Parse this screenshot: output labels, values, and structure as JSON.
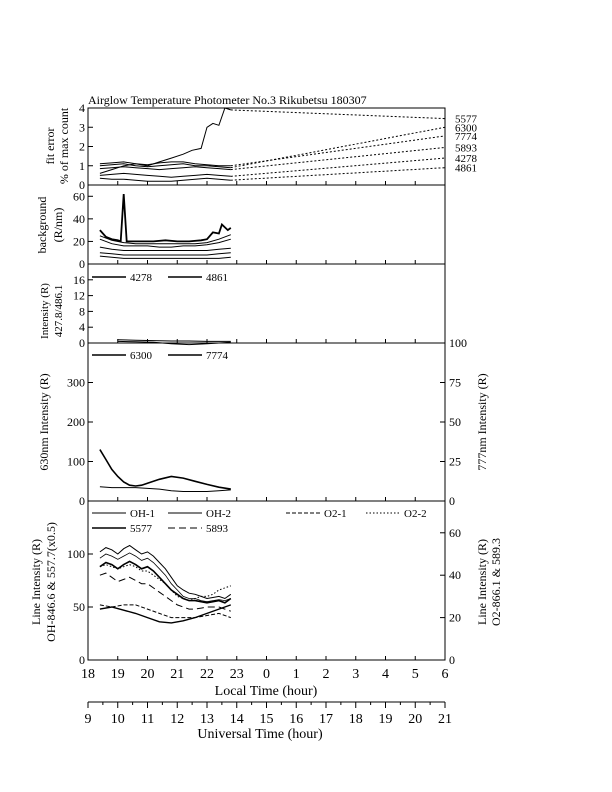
{
  "title": "Airglow Temperature Photometer No.3  Rikubetsu    180307",
  "x_axis": {
    "local_label": "Local Time (hour)",
    "local_ticks": [
      "18",
      "19",
      "20",
      "21",
      "22",
      "23",
      "0",
      "1",
      "2",
      "3",
      "4",
      "5",
      "6"
    ],
    "ut_label": "Universal Time (hour)",
    "ut_ticks": [
      "9",
      "10",
      "11",
      "12",
      "13",
      "14",
      "15",
      "16",
      "17",
      "18",
      "19",
      "20",
      "21"
    ],
    "range_local": [
      18,
      30
    ]
  },
  "chart_data": [
    {
      "type": "line",
      "panel": "fit-error",
      "ylabel_line1": "fit error",
      "ylabel_line2": "% of max count",
      "ylim": [
        0,
        4
      ],
      "yticks": [
        "0",
        "1",
        "2",
        "3",
        "4"
      ],
      "labels_right": [
        "5577",
        "6300",
        "7774",
        "5893",
        "4278",
        "4861"
      ],
      "label_targets_y": [
        3.45,
        3.0,
        2.55,
        1.95,
        1.4,
        0.9
      ],
      "series": [
        {
          "name": "5577",
          "x": [
            18.4,
            18.8,
            19.2,
            19.6,
            20.0,
            20.4,
            20.8,
            21.2,
            21.5,
            21.8,
            22.0,
            22.2,
            22.4,
            22.6,
            22.8
          ],
          "y": [
            0.6,
            0.8,
            1.0,
            1.1,
            1.0,
            1.2,
            1.4,
            1.6,
            1.8,
            1.9,
            3.0,
            3.2,
            3.1,
            4.0,
            3.9
          ]
        },
        {
          "name": "6300",
          "x": [
            18.4,
            18.8,
            19.2,
            19.6,
            20.0,
            20.4,
            20.8,
            21.2,
            21.6,
            22.0,
            22.4,
            22.8
          ],
          "y": [
            1.0,
            1.05,
            1.1,
            1.0,
            0.95,
            1.0,
            1.05,
            1.1,
            1.0,
            1.0,
            0.95,
            0.9
          ]
        },
        {
          "name": "7774",
          "x": [
            18.4,
            18.8,
            19.2,
            19.6,
            20.0,
            20.4,
            20.8,
            21.2,
            21.6,
            22.0,
            22.4,
            22.8
          ],
          "y": [
            1.1,
            1.15,
            1.2,
            1.1,
            1.05,
            1.15,
            1.2,
            1.2,
            1.1,
            1.05,
            1.0,
            1.0
          ]
        },
        {
          "name": "5893",
          "x": [
            18.4,
            18.8,
            19.2,
            19.6,
            20.0,
            20.4,
            20.8,
            21.2,
            21.6,
            22.0,
            22.4,
            22.8
          ],
          "y": [
            0.85,
            0.9,
            0.95,
            0.9,
            0.85,
            0.8,
            0.85,
            0.9,
            0.95,
            0.9,
            0.85,
            0.8
          ]
        },
        {
          "name": "4278",
          "x": [
            18.4,
            18.8,
            19.2,
            19.6,
            20.0,
            20.4,
            20.8,
            21.2,
            21.6,
            22.0,
            22.4,
            22.8
          ],
          "y": [
            0.5,
            0.55,
            0.6,
            0.55,
            0.5,
            0.45,
            0.4,
            0.45,
            0.5,
            0.55,
            0.5,
            0.45
          ]
        },
        {
          "name": "4861",
          "x": [
            18.4,
            18.8,
            19.2,
            19.6,
            20.0,
            20.4,
            20.8,
            21.2,
            21.6,
            22.0,
            22.4,
            22.8
          ],
          "y": [
            0.35,
            0.3,
            0.3,
            0.25,
            0.2,
            0.2,
            0.2,
            0.25,
            0.3,
            0.35,
            0.3,
            0.25
          ]
        }
      ]
    },
    {
      "type": "line",
      "panel": "background",
      "ylabel_line1": "background",
      "ylabel_line2": "(R/nm)",
      "ylim": [
        0,
        70
      ],
      "yticks": [
        "0",
        "20",
        "40",
        "60"
      ],
      "series": [
        {
          "name": "",
          "x": [
            18.4,
            18.6,
            18.8,
            19.0,
            19.1,
            19.2,
            19.3,
            19.4,
            19.8,
            20.2,
            20.6,
            21.0,
            21.4,
            21.8,
            22.0,
            22.2,
            22.4,
            22.5,
            22.7,
            22.8
          ],
          "y": [
            30,
            24,
            22,
            21,
            20,
            62,
            20,
            20,
            20,
            20,
            21,
            20,
            20,
            21,
            22,
            28,
            27,
            35,
            30,
            32
          ]
        },
        {
          "name": "",
          "x": [
            18.4,
            18.8,
            19.2,
            19.6,
            20.0,
            20.4,
            20.8,
            21.2,
            21.6,
            22.0,
            22.4,
            22.8
          ],
          "y": [
            25,
            21,
            19,
            18,
            18,
            18,
            18,
            18,
            18,
            19,
            22,
            26
          ]
        },
        {
          "name": "",
          "x": [
            18.4,
            18.8,
            19.2,
            19.6,
            20.0,
            20.4,
            20.8,
            21.2,
            21.6,
            22.0,
            22.4,
            22.8
          ],
          "y": [
            22,
            18,
            16,
            16,
            16,
            15,
            15,
            16,
            16,
            17,
            19,
            22
          ]
        },
        {
          "name": "",
          "x": [
            18.4,
            18.8,
            19.2,
            19.6,
            20.0,
            20.4,
            20.8,
            21.2,
            21.6,
            22.0,
            22.4,
            22.8
          ],
          "y": [
            15,
            13,
            12,
            12,
            12,
            12,
            12,
            12,
            12,
            12,
            13,
            14
          ]
        },
        {
          "name": "",
          "x": [
            18.4,
            18.8,
            19.2,
            19.6,
            20.0,
            20.4,
            20.8,
            21.2,
            21.6,
            22.0,
            22.4,
            22.8
          ],
          "y": [
            10,
            9,
            8,
            8,
            8,
            8,
            8,
            8,
            8,
            8,
            9,
            10
          ]
        },
        {
          "name": "",
          "x": [
            18.4,
            18.8,
            19.2,
            19.6,
            20.0,
            20.4,
            20.8,
            21.2,
            21.6,
            22.0,
            22.4,
            22.8
          ],
          "y": [
            7,
            6,
            5,
            5,
            5,
            5,
            5,
            5,
            5,
            5,
            5,
            6
          ]
        }
      ]
    },
    {
      "type": "line",
      "panel": "intensity-427-486",
      "ylabel_line1": "Intensity (R)",
      "ylabel_line2": "427.8/486.1",
      "ylim": [
        0,
        20
      ],
      "yticks": [
        "0",
        "4",
        "8",
        "12",
        "16"
      ],
      "legend": [
        "4278",
        "4861"
      ],
      "series": [
        {
          "name": "4278",
          "x": [
            19.0,
            19.6,
            20.2,
            20.8,
            21.4,
            22.0,
            22.6,
            22.8
          ],
          "y": [
            0.8,
            0.7,
            0.6,
            0.5,
            0.5,
            0.4,
            0.4,
            0.4
          ]
        },
        {
          "name": "4861",
          "x": [
            19.0,
            19.6,
            20.2,
            20.8,
            21.4,
            22.0,
            22.6,
            22.8
          ],
          "y": [
            0.4,
            0.3,
            0.2,
            -0.2,
            -0.4,
            -0.2,
            0.1,
            0.2
          ]
        }
      ]
    },
    {
      "type": "line",
      "panel": "intensity-630-777",
      "ylabel_left": "630nm Intensity (R)",
      "ylabel_right": "777nm Intensity (R)",
      "ylim_left": [
        0,
        400
      ],
      "ylim_right": [
        0,
        100
      ],
      "yticks_left": [
        "0",
        "100",
        "200",
        "300"
      ],
      "yticks_right": [
        "0",
        "25",
        "50",
        "75",
        "100"
      ],
      "legend": [
        "6300",
        "7774"
      ],
      "series": [
        {
          "name": "6300",
          "axis": "left",
          "x": [
            18.4,
            18.6,
            18.8,
            19.0,
            19.2,
            19.4,
            19.6,
            19.8,
            20.0,
            20.4,
            20.8,
            21.2,
            21.6,
            22.0,
            22.4,
            22.8
          ],
          "y": [
            130,
            105,
            80,
            62,
            48,
            40,
            38,
            40,
            45,
            55,
            62,
            58,
            50,
            42,
            35,
            30
          ]
        },
        {
          "name": "7774",
          "axis": "right",
          "x": [
            18.4,
            18.8,
            19.2,
            19.6,
            20.0,
            20.4,
            20.8,
            21.2,
            21.6,
            22.0,
            22.4,
            22.8
          ],
          "y": [
            9,
            8.5,
            8.5,
            8.5,
            8.0,
            7.5,
            6.5,
            6.0,
            6.0,
            6.0,
            6.5,
            7.0
          ]
        }
      ]
    },
    {
      "type": "line",
      "panel": "line-intensity",
      "ylabel_left_line1": "Line Intensity (R)",
      "ylabel_left_line2": "OH-846.6 & 557.7(x0.5)",
      "ylabel_right_line1": "Line Intensity (R)",
      "ylabel_right_line2": "O2-866.1 & 589.3",
      "ylim_left": [
        0,
        150
      ],
      "ylim_right": [
        0,
        75
      ],
      "yticks_left": [
        "0",
        "50",
        "100"
      ],
      "yticks_right": [
        "0",
        "20",
        "40",
        "60"
      ],
      "legend": [
        "OH-1",
        "OH-2",
        "O2-1",
        "O2-2",
        "5577",
        "5893"
      ],
      "series": [
        {
          "name": "OH-1",
          "axis": "left",
          "dash": "solid",
          "width": 1.0,
          "x": [
            18.4,
            18.6,
            18.8,
            19.0,
            19.2,
            19.4,
            19.6,
            19.8,
            20.0,
            20.2,
            20.4,
            20.6,
            20.8,
            21.0,
            21.2,
            21.4,
            21.6,
            21.8,
            22.0,
            22.2,
            22.4,
            22.6,
            22.8
          ],
          "y": [
            102,
            106,
            104,
            100,
            105,
            108,
            104,
            100,
            102,
            98,
            92,
            86,
            78,
            70,
            66,
            63,
            62,
            60,
            58,
            59,
            60,
            58,
            62
          ]
        },
        {
          "name": "OH-2",
          "axis": "left",
          "dash": "solid",
          "width": 0.8,
          "x": [
            18.4,
            18.6,
            18.8,
            19.0,
            19.2,
            19.4,
            19.6,
            19.8,
            20.0,
            20.2,
            20.4,
            20.6,
            20.8,
            21.0,
            21.2,
            21.4,
            21.6,
            21.8,
            22.0,
            22.2,
            22.4,
            22.6,
            22.8
          ],
          "y": [
            96,
            100,
            98,
            95,
            98,
            101,
            98,
            94,
            96,
            92,
            86,
            80,
            72,
            66,
            60,
            58,
            58,
            56,
            55,
            56,
            57,
            56,
            58
          ]
        },
        {
          "name": "O2-1",
          "axis": "right",
          "dash": "dash",
          "width": 1.0,
          "x": [
            18.4,
            18.8,
            19.2,
            19.6,
            20.0,
            20.4,
            20.8,
            21.2,
            21.6,
            22.0,
            22.4,
            22.8
          ],
          "y": [
            26,
            25,
            26,
            26,
            24,
            22,
            20,
            20,
            20,
            21,
            22,
            20
          ]
        },
        {
          "name": "O2-2",
          "axis": "right",
          "dash": "dot",
          "width": 1.0,
          "x": [
            18.4,
            18.6,
            18.8,
            19.0,
            19.2,
            19.4,
            19.6,
            19.8,
            20.0,
            20.2,
            20.4,
            20.6,
            20.8,
            21.0,
            21.2,
            21.4,
            21.6,
            21.8,
            22.0,
            22.2,
            22.4,
            22.6,
            22.8
          ],
          "y": [
            44,
            45,
            44,
            43,
            44,
            45,
            44,
            42,
            42,
            40,
            38,
            36,
            33,
            30,
            29,
            28,
            29,
            30,
            30,
            31,
            33,
            34,
            35
          ]
        },
        {
          "name": "5577",
          "axis": "left",
          "dash": "solid",
          "width": 1.6,
          "x": [
            18.4,
            18.6,
            18.8,
            19.0,
            19.2,
            19.4,
            19.6,
            19.8,
            20.0,
            20.2,
            20.4,
            20.6,
            20.8,
            21.0,
            21.2,
            21.4,
            21.6,
            21.8,
            22.0,
            22.2,
            22.4,
            22.6,
            22.8
          ],
          "y": [
            88,
            92,
            90,
            86,
            90,
            93,
            90,
            86,
            88,
            84,
            78,
            72,
            66,
            62,
            58,
            56,
            56,
            55,
            54,
            55,
            56,
            54,
            58
          ]
        },
        {
          "name": "5893",
          "axis": "left",
          "dash": "longdash",
          "width": 1.0,
          "x": [
            18.4,
            18.6,
            18.8,
            19.0,
            19.2,
            19.4,
            19.6,
            19.8,
            20.0,
            20.2,
            20.4,
            20.6,
            20.8,
            21.0,
            21.2,
            21.4,
            21.6,
            21.8,
            22.0,
            22.2,
            22.4,
            22.6,
            22.8
          ],
          "y": [
            80,
            82,
            78,
            74,
            76,
            78,
            75,
            72,
            72,
            68,
            64,
            60,
            56,
            52,
            50,
            48,
            48,
            49,
            50,
            50,
            50,
            48,
            46
          ]
        },
        {
          "name": "",
          "axis": "left",
          "dash": "solid",
          "width": 1.4,
          "x": [
            18.4,
            18.8,
            19.2,
            19.6,
            20.0,
            20.4,
            20.8,
            21.2,
            21.6,
            22.0,
            22.4,
            22.8
          ],
          "y": [
            48,
            50,
            47,
            44,
            40,
            36,
            35,
            37,
            40,
            44,
            48,
            52
          ]
        }
      ]
    }
  ]
}
